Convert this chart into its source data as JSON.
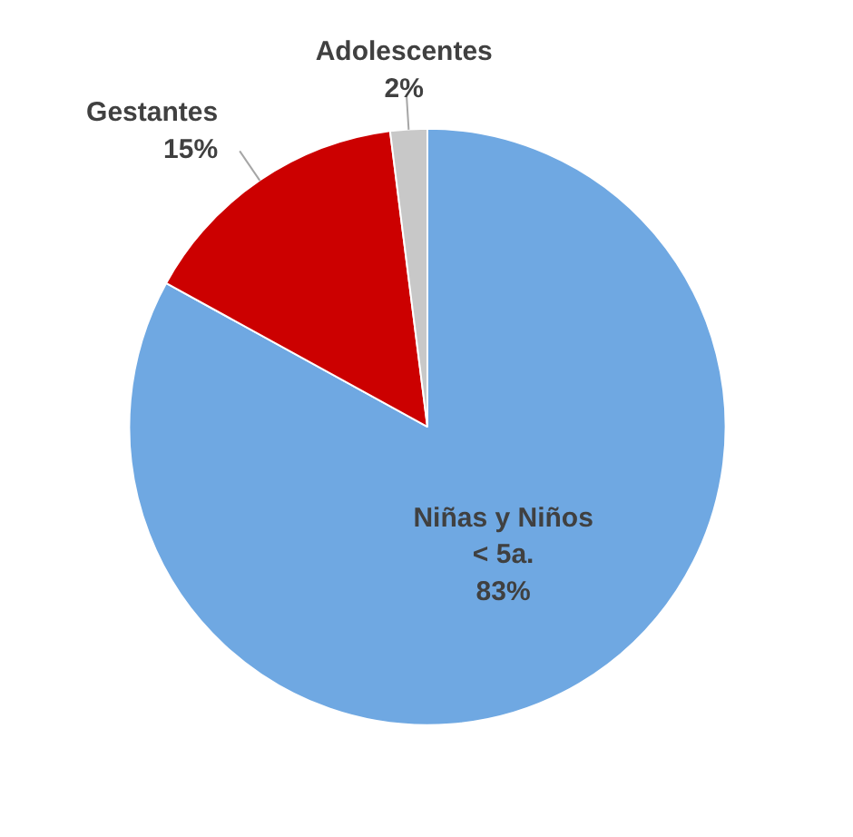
{
  "chart_data": {
    "type": "pie",
    "categories": [
      "Niñas y Niños\n< 5a.",
      "Gestantes",
      "Adolescentes"
    ],
    "values": [
      83,
      15,
      2
    ],
    "colors": [
      "#6fa8e2",
      "#cc0000",
      "#c8c8c8"
    ],
    "value_labels": [
      "83%",
      "15%",
      "2%"
    ]
  }
}
